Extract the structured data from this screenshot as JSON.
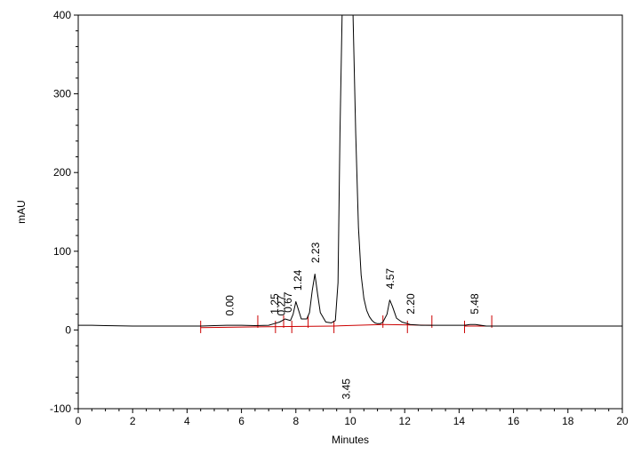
{
  "chart_data": {
    "type": "line",
    "xlabel": "Minutes",
    "ylabel": "mAU",
    "xlim": [
      0,
      20
    ],
    "ylim": [
      -100,
      400
    ],
    "xticks": [
      "0",
      "2",
      "4",
      "6",
      "8",
      "10",
      "12",
      "14",
      "16",
      "18",
      "20"
    ],
    "yticks": [
      "-100",
      "0",
      "100",
      "200",
      "300",
      "400"
    ],
    "grid": false,
    "colors": {
      "trace": "#000000",
      "baseline": "#cc0000",
      "axis": "#000000"
    },
    "series": [
      {
        "x": [
          0,
          0.5,
          1,
          2,
          3,
          4,
          4.5,
          5,
          5.5,
          6,
          6.5,
          7,
          7.2,
          7.4,
          7.5,
          7.6,
          7.7,
          7.8,
          7.9,
          8.0,
          8.1,
          8.2,
          8.4,
          8.5,
          8.6,
          8.7,
          8.8,
          8.9,
          9.1,
          9.3,
          9.45,
          9.55,
          9.62,
          9.7,
          9.8,
          10.0,
          10.1,
          10.2,
          10.3,
          10.4,
          10.5,
          10.6,
          10.7,
          10.8,
          10.9,
          11.0,
          11.1,
          11.2,
          11.35,
          11.45,
          11.55,
          11.7,
          11.9,
          12.0,
          12.2,
          12.6,
          13,
          14,
          14.2,
          14.4,
          14.6,
          14.8,
          15,
          15.2,
          16,
          17,
          18,
          19,
          20
        ],
        "y": [
          6,
          6,
          5.5,
          5,
          5,
          5,
          5,
          5.5,
          6,
          6,
          5.5,
          6,
          8,
          10,
          12,
          14,
          13,
          12,
          20,
          36,
          25,
          14,
          14,
          22,
          50,
          71,
          45,
          22,
          10,
          9,
          12,
          60,
          250,
          400,
          400,
          400,
          400,
          250,
          130,
          70,
          40,
          25,
          17,
          12,
          9,
          8,
          8,
          10,
          20,
          38,
          30,
          15,
          10,
          9,
          7,
          6,
          6,
          6,
          6,
          7,
          7,
          6,
          5,
          5,
          5,
          5,
          5,
          5,
          5
        ]
      }
    ],
    "baseline": {
      "segments": [
        {
          "x": [
            4.5,
            6.6
          ],
          "y": [
            3,
            4
          ]
        },
        {
          "x": [
            6.6,
            9.4
          ],
          "y": [
            4,
            5
          ]
        },
        {
          "x": [
            9.4,
            11.2
          ],
          "y": [
            5,
            7
          ]
        },
        {
          "x": [
            11.2,
            13.0
          ],
          "y": [
            7,
            6
          ]
        },
        {
          "x": [
            14.2,
            15.2
          ],
          "y": [
            5,
            5
          ]
        }
      ],
      "ticks_x": [
        4.5,
        6.6,
        7.25,
        7.55,
        7.85,
        8.45,
        9.4,
        11.2,
        12.1,
        13.0,
        14.2,
        15.2
      ]
    },
    "annotations": [
      {
        "text": "0.00",
        "x": 5.7,
        "y": 18
      },
      {
        "text": "1.25",
        "x": 7.35,
        "y": 20
      },
      {
        "text": "0.27",
        "x": 7.6,
        "y": 18
      },
      {
        "text": "0.67",
        "x": 7.85,
        "y": 22
      },
      {
        "text": "1.24",
        "x": 8.2,
        "y": 50
      },
      {
        "text": "2.23",
        "x": 8.85,
        "y": 85
      },
      {
        "text": "3.45",
        "x": 9.98,
        "y": -88
      },
      {
        "text": "4.57",
        "x": 11.6,
        "y": 52
      },
      {
        "text": "2.20",
        "x": 12.35,
        "y": 20
      },
      {
        "text": "5.48",
        "x": 14.7,
        "y": 20
      }
    ]
  }
}
